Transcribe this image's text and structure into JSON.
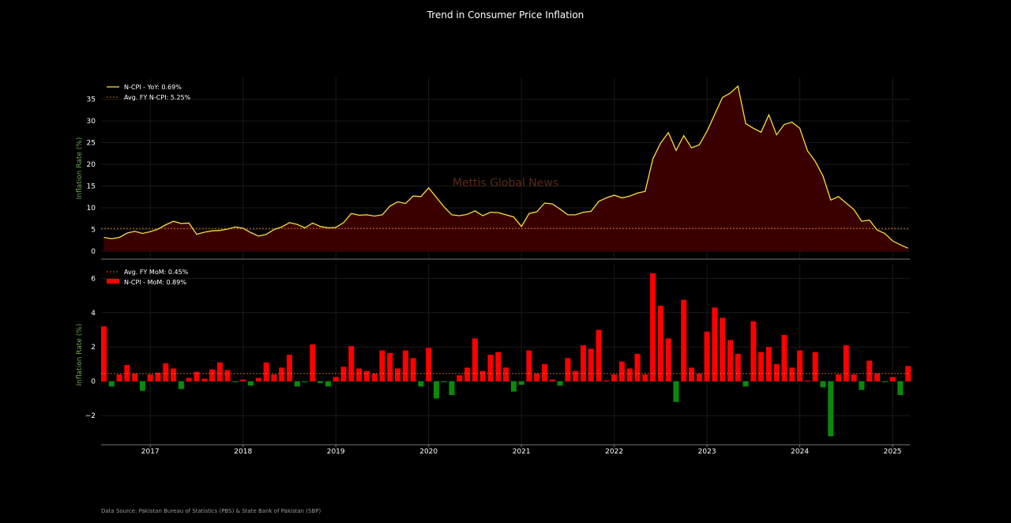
{
  "title": "Trend in Consumer Price Inflation",
  "watermark": "Mettis Global News",
  "source": "Data Source: Pakistan Bureau of Statistics (PBS) & State Bank of Pakistan (SBP)",
  "colors": {
    "background": "#000000",
    "yoy_line": "#f0e040",
    "yoy_fill": "#3a0000",
    "avg_line": "#f08a30",
    "bar_positive": "#ff0000",
    "bar_negative": "#0a8a0a",
    "axis_label": "#6aa84f",
    "tick_text": "#ffffff",
    "watermark": "#5a2a14"
  },
  "chart_data": [
    {
      "type": "area",
      "ylabel": "Inflation Rate (%)",
      "ylim": [
        -1.8,
        40
      ],
      "yticks": [
        0,
        5,
        10,
        15,
        20,
        25,
        30,
        35
      ],
      "legend_position": "top-left",
      "x_start": "2016-07",
      "legend": [
        "N-CPI - YoY: 0.69%",
        "Avg. FY N-CPI: 5.25%"
      ],
      "avg_value": 5.25,
      "series": [
        {
          "name": "N-CPI - YoY: 0.69%",
          "values": [
            3.2,
            2.9,
            3.2,
            4.2,
            4.6,
            4.1,
            4.5,
            5.1,
            6.1,
            6.9,
            6.4,
            6.5,
            3.9,
            4.4,
            4.7,
            4.8,
            5.1,
            5.6,
            5.3,
            4.3,
            3.5,
            3.9,
            5.0,
            5.6,
            6.6,
            6.2,
            5.4,
            6.5,
            5.7,
            5.4,
            5.5,
            6.6,
            8.7,
            8.3,
            8.4,
            8.1,
            8.4,
            10.4,
            11.4,
            11.0,
            12.7,
            12.6,
            14.6,
            12.4,
            10.2,
            8.4,
            8.2,
            8.5,
            9.3,
            8.2,
            9.0,
            8.9,
            8.4,
            7.9,
            5.7,
            8.7,
            9.1,
            11.1,
            10.9,
            9.7,
            8.4,
            8.4,
            9.0,
            9.2,
            11.5,
            12.3,
            12.9,
            12.3,
            12.7,
            13.4,
            13.8,
            21.3,
            24.9,
            27.3,
            23.2,
            26.6,
            23.8,
            24.5,
            27.6,
            31.5,
            35.4,
            36.4,
            38.0,
            29.4,
            28.3,
            27.4,
            31.4,
            26.8,
            29.2,
            29.7,
            28.3,
            23.1,
            20.7,
            17.3,
            11.8,
            12.6,
            11.1,
            9.6,
            6.9,
            7.2,
            4.9,
            4.1,
            2.4,
            1.5,
            0.7
          ]
        }
      ]
    },
    {
      "type": "bar",
      "ylabel": "Inflation Rate (%)",
      "ylim": [
        -3.7,
        6.8
      ],
      "yticks": [
        -2,
        0,
        2,
        4,
        6
      ],
      "legend_position": "top-left",
      "x_start": "2016-07",
      "legend": [
        "Avg. FY MoM: 0.45%",
        "N-CPI - MoM: 0.89%"
      ],
      "avg_value": 0.45,
      "xticks": [
        "2017",
        "2018",
        "2019",
        "2020",
        "2021",
        "2022",
        "2023",
        "2024",
        "2025"
      ],
      "series": [
        {
          "name": "N-CPI - MoM: 0.89%",
          "values": [
            3.2,
            -0.3,
            0.4,
            0.95,
            0.45,
            -0.55,
            0.4,
            0.5,
            1.05,
            0.75,
            -0.45,
            0.2,
            0.55,
            0.15,
            0.7,
            1.1,
            0.65,
            -0.05,
            0.1,
            -0.25,
            0.2,
            1.1,
            0.4,
            0.8,
            1.55,
            -0.3,
            -0.05,
            2.15,
            -0.1,
            -0.3,
            0.25,
            0.85,
            2.05,
            0.75,
            0.6,
            0.45,
            1.8,
            1.65,
            0.75,
            1.8,
            1.35,
            -0.3,
            1.95,
            -1.0,
            -0.05,
            -0.8,
            0.35,
            0.8,
            2.5,
            0.6,
            1.55,
            1.7,
            0.8,
            -0.6,
            -0.2,
            1.8,
            0.45,
            1.0,
            0.1,
            -0.25,
            1.35,
            0.6,
            2.1,
            1.9,
            3.0,
            0.05,
            0.4,
            1.15,
            0.75,
            1.6,
            0.4,
            6.3,
            4.4,
            2.5,
            -1.2,
            4.75,
            0.8,
            0.45,
            2.9,
            4.3,
            3.7,
            2.4,
            1.6,
            -0.3,
            3.5,
            1.7,
            2.0,
            1.0,
            2.7,
            0.8,
            1.8,
            0.05,
            1.7,
            -0.35,
            -3.2,
            0.4,
            2.1,
            0.4,
            -0.5,
            1.2,
            0.45,
            -0.05,
            0.25,
            -0.8,
            0.89
          ]
        }
      ]
    }
  ]
}
